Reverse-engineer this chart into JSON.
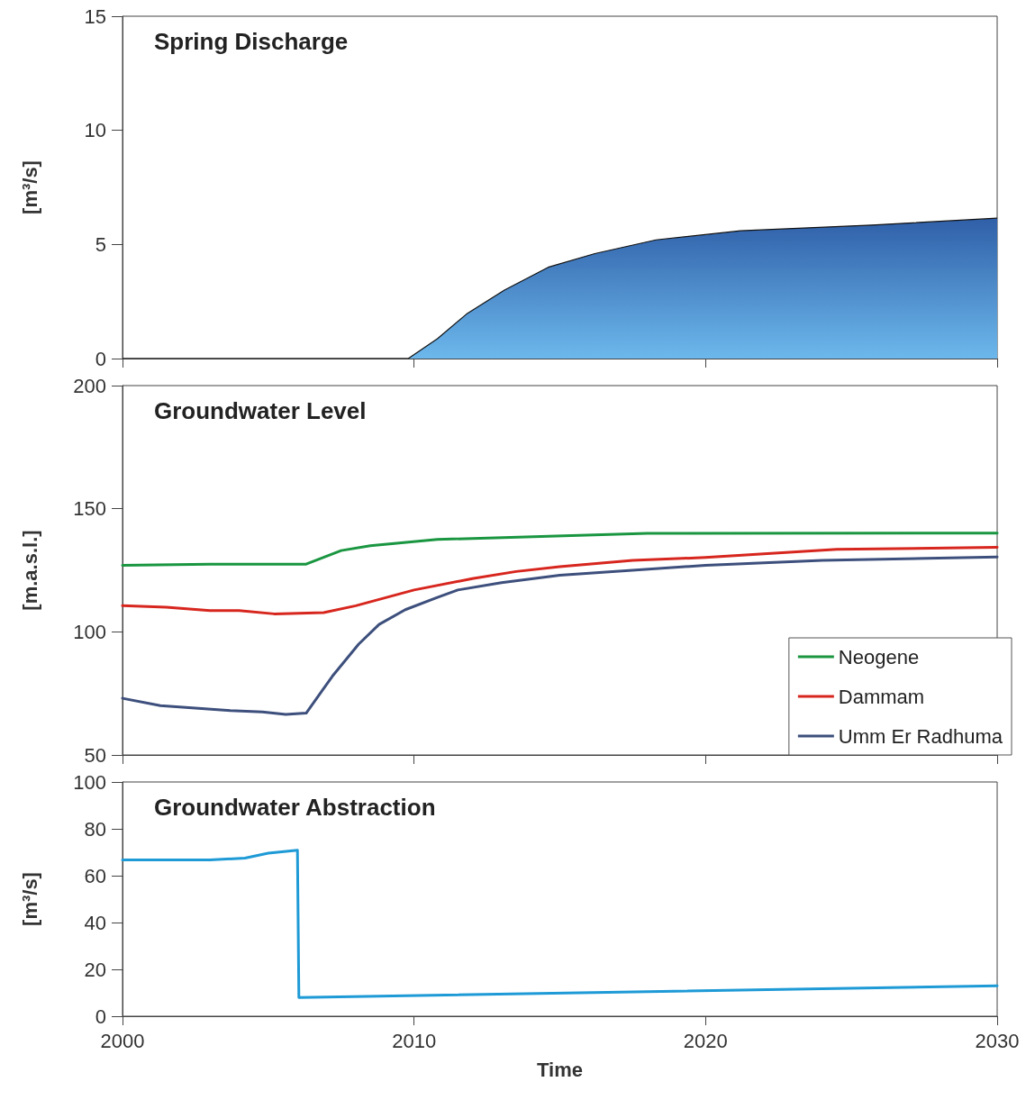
{
  "chart_data": [
    {
      "type": "area",
      "title": "Spring Discharge",
      "ylabel": "[m³/s]",
      "xlim": [
        2000,
        2030
      ],
      "xticks": [
        2000,
        2010,
        2020,
        2030
      ],
      "ylim": [
        0,
        15
      ],
      "yticks": [
        0,
        5,
        10,
        15
      ],
      "tick_labels": "y",
      "grid": false,
      "legend": false,
      "series": [
        {
          "color": "#2f5fa8",
          "x": [
            2000,
            2009.8,
            2010.8,
            2011.8,
            2013.1,
            2014.6,
            2016.2,
            2018.3,
            2021.2,
            2025.7,
            2030
          ],
          "values": [
            0,
            0,
            0.87,
            1.95,
            3.0,
            4.0,
            4.6,
            5.2,
            5.6,
            5.85,
            6.15
          ]
        }
      ]
    },
    {
      "type": "line",
      "title": "Groundwater Level",
      "ylabel": "[m.a.s.l.]",
      "xlim": [
        2000,
        2030
      ],
      "xticks": [
        2000,
        2010,
        2020,
        2030
      ],
      "ylim": [
        50,
        200
      ],
      "yticks": [
        50,
        100,
        150,
        200
      ],
      "tick_labels": "y",
      "grid": false,
      "legend": "bottom right",
      "series": [
        {
          "name": "Neogene",
          "color": "#1a9641",
          "x": [
            2000,
            2003,
            2006.3,
            2007.5,
            2008.5,
            2010.8,
            2018,
            2030
          ],
          "values": [
            127,
            127.5,
            127.5,
            133,
            135,
            137.5,
            140,
            140.1
          ]
        },
        {
          "name": "Dammam",
          "color": "#d7261e",
          "x": [
            2000,
            2001.5,
            2003,
            2004,
            2005.2,
            2006.9,
            2008,
            2010,
            2012,
            2013.5,
            2015,
            2017.5,
            2020,
            2024.5,
            2030
          ],
          "values": [
            110.6,
            110,
            108.6,
            108.6,
            107.3,
            107.8,
            110.6,
            117,
            121.6,
            124.5,
            126.5,
            129,
            130.2,
            133.5,
            134.3
          ]
        },
        {
          "name": "Umm Er Radhuma",
          "color": "#3d4f7c",
          "x": [
            2000,
            2001.3,
            2003.7,
            2004.8,
            2005.6,
            2006.3,
            2007.2,
            2008.1,
            2008.8,
            2009.7,
            2010.8,
            2011.5,
            2013,
            2015,
            2020,
            2024,
            2030
          ],
          "values": [
            73,
            70,
            68,
            67.5,
            66.5,
            67,
            82,
            95,
            103,
            109,
            114,
            117,
            120,
            123,
            127,
            129,
            130.4
          ]
        }
      ]
    },
    {
      "type": "line",
      "title": "Groundwater Abstraction",
      "ylabel": "[m³/s]",
      "xlabel": "Time",
      "xlim": [
        2000,
        2030
      ],
      "xticks": [
        2000,
        2010,
        2020,
        2030
      ],
      "ylim": [
        0,
        100
      ],
      "yticks": [
        0,
        20,
        40,
        60,
        80,
        100
      ],
      "grid": false,
      "legend": false,
      "series": [
        {
          "color": "#1e9ad6",
          "x": [
            2000,
            2003,
            2004.2,
            2005,
            2006,
            2006.05,
            2030
          ],
          "values": [
            66.7,
            66.7,
            67.5,
            69.6,
            70.9,
            8,
            13
          ]
        }
      ]
    }
  ]
}
